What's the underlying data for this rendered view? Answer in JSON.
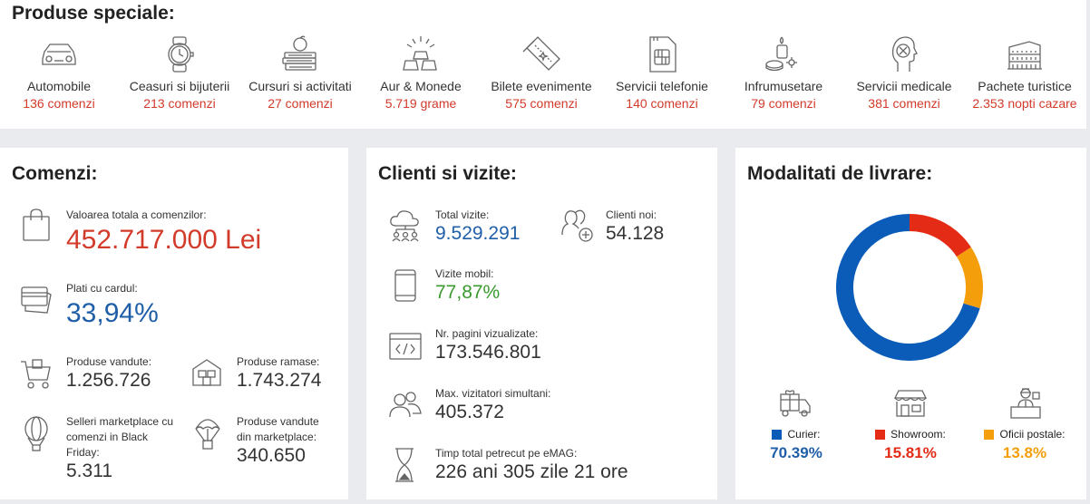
{
  "special": {
    "title": "Produse speciale:",
    "items": [
      {
        "name": "Automobile",
        "count": "136 comenzi",
        "icon": "car-icon"
      },
      {
        "name": "Ceasuri si bijuterii",
        "count": "213 comenzi",
        "icon": "watch-icon"
      },
      {
        "name": "Cursuri si activitati",
        "count": "27 comenzi",
        "icon": "books-apple-icon"
      },
      {
        "name": "Aur & Monede",
        "count": "5.719 grame",
        "icon": "gold-bars-icon"
      },
      {
        "name": "Bilete evenimente",
        "count": "575 comenzi",
        "icon": "tickets-icon"
      },
      {
        "name": "Servicii telefonie",
        "count": "140 comenzi",
        "icon": "sim-card-icon"
      },
      {
        "name": "Infrumusetare",
        "count": "79 comenzi",
        "icon": "candle-spa-icon"
      },
      {
        "name": "Servicii medicale",
        "count": "381 comenzi",
        "icon": "medical-head-icon"
      },
      {
        "name": "Pachete turistice",
        "count": "2.353 nopti cazare",
        "icon": "colosseum-icon"
      }
    ]
  },
  "orders": {
    "title": "Comenzi:",
    "total_label": "Valoarea totala a comenzilor:",
    "total_value": "452.717.000 Lei",
    "card_label": "Plati cu cardul:",
    "card_value": "33,94%",
    "sold_label": "Produse vandute:",
    "sold_value": "1.256.726",
    "remaining_label": "Produse ramase:",
    "remaining_value": "1.743.274",
    "sellers_label": "Selleri marketplace cu comenzi in Black Friday:",
    "sellers_value": "5.311",
    "marketplace_label": "Produse vandute din marketplace:",
    "marketplace_value": "340.650"
  },
  "visits": {
    "title": "Clienti si vizite:",
    "total_label": "Total vizite:",
    "total_value": "9.529.291",
    "new_label": "Clienti noi:",
    "new_value": "54.128",
    "mobile_label": "Vizite mobil:",
    "mobile_value": "77,87%",
    "pages_label": "Nr. pagini vizualizate:",
    "pages_value": "173.546.801",
    "concurrent_label": "Max. vizitatori simultani:",
    "concurrent_value": "405.372",
    "time_label": "Timp total petrecut pe eMAG:",
    "time_value": "226 ani 305 zile 21 ore"
  },
  "delivery": {
    "title": "Modalitati de livrare:",
    "chart_data": {
      "type": "pie",
      "categories": [
        "Curier:",
        "Showroom:",
        "Oficii postale:"
      ],
      "values": [
        70.39,
        15.81,
        13.8
      ],
      "colors": [
        "#0b5cb8",
        "#e32b16",
        "#f59e0b"
      ]
    },
    "legend": [
      {
        "label": "Curier:",
        "value": "70.39%",
        "color": "#0b5cb8",
        "icon": "delivery-truck-icon"
      },
      {
        "label": "Showroom:",
        "value": "15.81%",
        "color": "#e32b16",
        "icon": "showroom-store-icon"
      },
      {
        "label": "Oficii postale:",
        "value": "13.8%",
        "color": "#f59e0b",
        "icon": "post-office-icon"
      }
    ]
  },
  "colors": {
    "accent_red": "#d23a2a",
    "accent_blue": "#1f5fa8",
    "accent_green": "#3a9a2e"
  }
}
